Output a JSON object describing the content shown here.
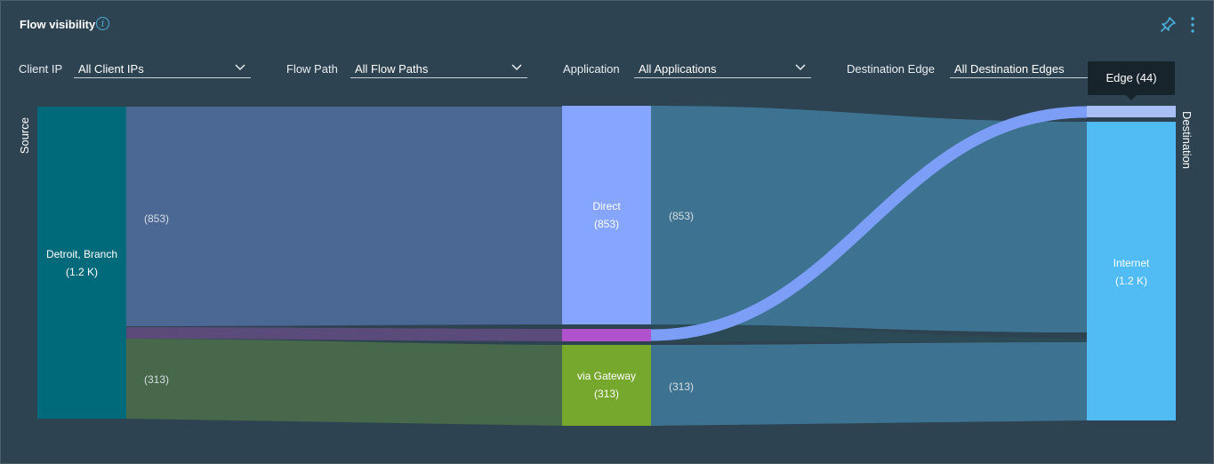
{
  "header": {
    "title": "Flow visibility",
    "info_icon": "info-icon",
    "pin_icon": "pin-icon",
    "menu_icon": "kebab-menu-icon"
  },
  "filters": [
    {
      "label": "Client IP",
      "value": "All Client IPs"
    },
    {
      "label": "Flow Path",
      "value": "All Flow Paths"
    },
    {
      "label": "Application",
      "value": "All Applications"
    },
    {
      "label": "Destination Edge",
      "value": "All Destination Edges"
    }
  ],
  "axes": {
    "source": "Source",
    "destination": "Destination"
  },
  "tooltip": "Edge (44)",
  "sankey": {
    "nodes": {
      "source": {
        "name": "Detroit, Branch",
        "count": "(1.2 K)",
        "color": "#006a7a"
      },
      "direct": {
        "name": "Direct",
        "count": "(853)",
        "color": "#85a5ff"
      },
      "other": {
        "name": "",
        "count": "",
        "color": "#b052cc"
      },
      "gateway": {
        "name": "via Gateway",
        "count": "(313)",
        "color": "#77a82e"
      },
      "edge": {
        "name": "Edge",
        "count": "(44)",
        "color": "#a8bff5"
      },
      "internet": {
        "name": "Internet",
        "count": "(1.2 K)",
        "color": "#51bcf3"
      }
    },
    "link_labels": {
      "source_direct": "(853)",
      "source_gateway": "(313)",
      "direct_internet": "(853)",
      "gateway_internet": "(313)"
    },
    "link_colors": {
      "source_direct": "#4b6894",
      "source_other": "#5a4b7a",
      "source_gateway": "#47684a",
      "to_internet": "#3d7390",
      "to_edge": "#7c9ef7"
    }
  }
}
